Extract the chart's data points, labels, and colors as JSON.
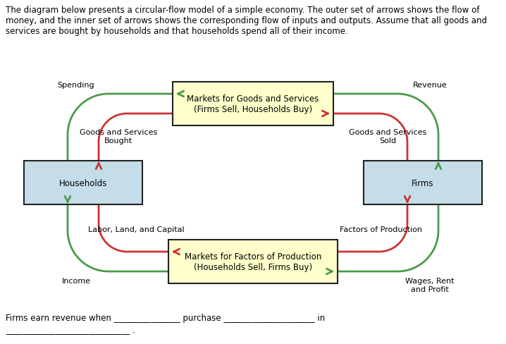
{
  "title_text": "The diagram below presents a circular-flow model of a simple economy. The outer set of arrows shows the flow of\nmoney, and the inner set of arrows shows the corresponding flow of inputs and outputs. Assume that all goods and\nservices are bought by households and that households spend all of their income.",
  "footer_line1": "Firms earn revenue when ________________ purchase ______________________ in",
  "footer_line2": "______________________________ .",
  "box_goods_label": "Markets for Goods and Services\n(Firms Sell, Households Buy)",
  "box_factors_label": "Markets for Factors of Production\n(Households Sell, Firms Buy)",
  "box_households_label": "Households",
  "box_firms_label": "Firms",
  "box_goods_color": "#FFFFCC",
  "box_factors_color": "#FFFFCC",
  "box_households_color": "#C5DDE8",
  "box_firms_color": "#C5DDE8",
  "box_edge_color": "#222222",
  "green_color": "#4A9A4A",
  "red_color": "#CC3333",
  "label_spending": "Spending",
  "label_revenue": "Revenue",
  "label_goods_bought": "Goods and Services\nBought",
  "label_goods_sold": "Goods and Services\nSold",
  "label_labor": "Labor, Land, and Capital",
  "label_factors": "Factors of Production",
  "label_income": "Income",
  "label_wages": "Wages, Rent\nand Profit",
  "font_size_box": 8.5,
  "font_size_label": 8,
  "font_size_title": 8.5,
  "font_size_footer": 8.5
}
